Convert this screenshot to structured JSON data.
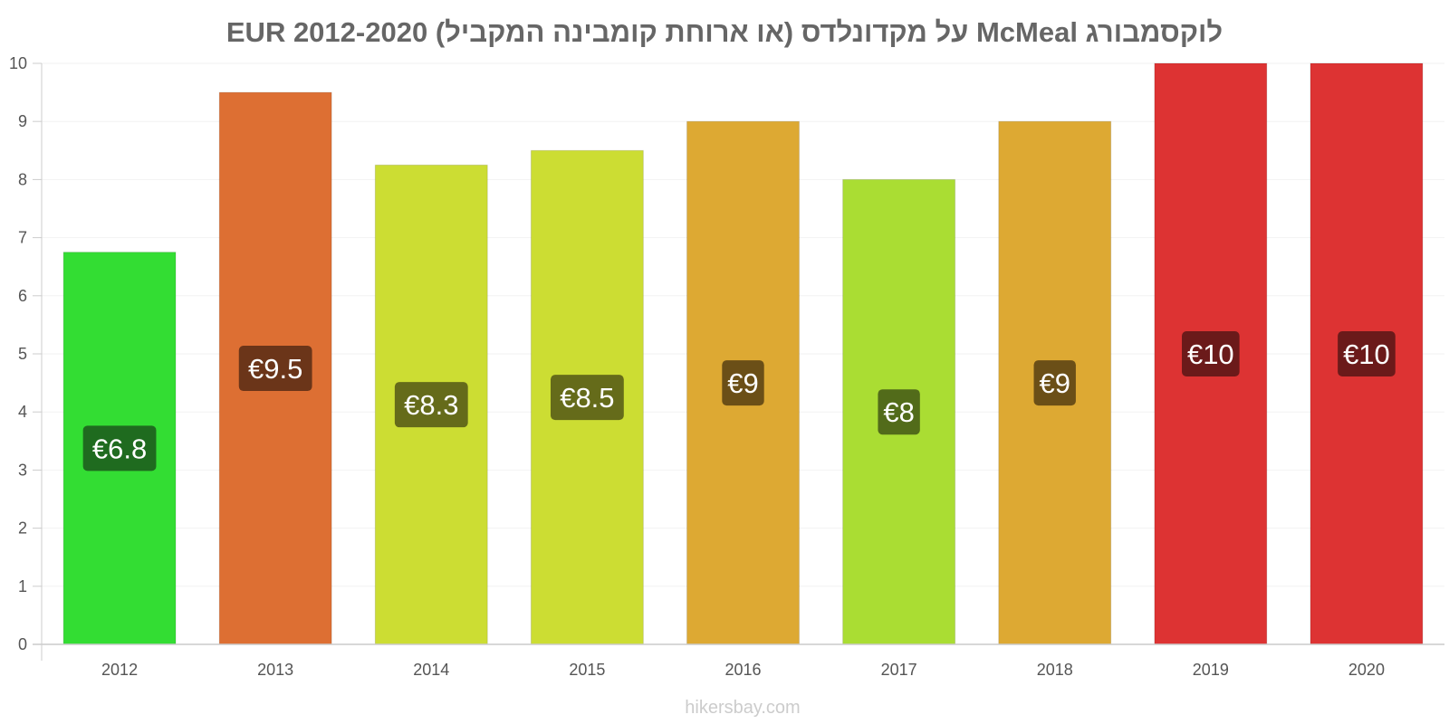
{
  "chart_data": {
    "type": "bar",
    "title": "לוקסמבורג McMeal על מקדונלדס (או ארוחת קומבינה המקביל) EUR 2012-2020",
    "categories": [
      "2012",
      "2013",
      "2014",
      "2015",
      "2016",
      "2017",
      "2018",
      "2019",
      "2020"
    ],
    "values": [
      6.75,
      9.5,
      8.25,
      8.5,
      9,
      8,
      9,
      10,
      10
    ],
    "data_labels": [
      "€6.8",
      "€9.5",
      "€8.3",
      "€8.5",
      "€9",
      "€8",
      "€9",
      "€10",
      "€10"
    ],
    "bar_colors": [
      "#33dd33",
      "#dd6f33",
      "#ccdd33",
      "#ccdd33",
      "#dda933",
      "#aadd33",
      "#dda933",
      "#dd3333",
      "#dd3333"
    ],
    "label_bg_colors": [
      "#1f6b1f",
      "#6b3519",
      "#656b1a",
      "#656b1a",
      "#6b4f17",
      "#526b1a",
      "#6b4f17",
      "#6b1a1a",
      "#6b1a1a"
    ],
    "ylim": [
      0,
      10
    ],
    "yticks": [
      0,
      1,
      2,
      3,
      4,
      5,
      6,
      7,
      8,
      9,
      10
    ],
    "grid": true,
    "xlabel": "",
    "ylabel": ""
  },
  "credit": "hikersbay.com"
}
